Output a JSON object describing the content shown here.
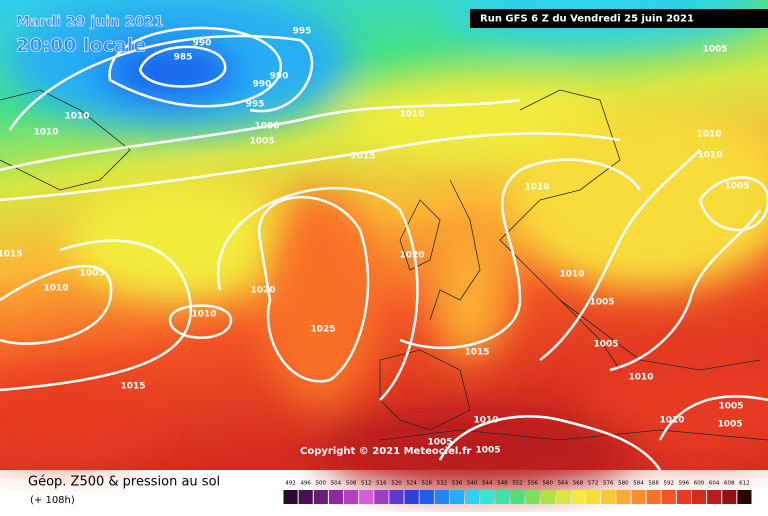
{
  "header": {
    "date": "Mardi 29 juin 2021",
    "time": "20:00 locale",
    "run": "Run GFS 6 Z du Vendredi 25 juin 2021"
  },
  "isobar_labels": [
    990,
    985,
    995,
    990,
    990,
    995,
    1010,
    1010,
    1000,
    1005,
    1010,
    1015,
    1005,
    1010,
    1010,
    1005,
    1010,
    1015,
    1005,
    1010,
    1020,
    1020,
    1010,
    1005,
    1010,
    1025,
    1015,
    1005,
    1010,
    1015,
    1010,
    1005,
    1010,
    1005,
    1005,
    1005
  ],
  "copyright": "Copyright © 2021 Meteociel.fr",
  "legend": {
    "title": "Géop. Z500 & pression au sol",
    "subtitle": "(+ 108h)",
    "values": [
      492,
      496,
      500,
      504,
      508,
      512,
      516,
      520,
      524,
      528,
      532,
      536,
      540,
      544,
      548,
      552,
      556,
      560,
      564,
      568,
      572,
      576,
      580,
      584,
      588,
      592,
      596,
      600,
      604,
      608,
      612
    ],
    "colors": [
      "#2b0a2e",
      "#4b0f54",
      "#6b1d7a",
      "#8e2a9e",
      "#b63fbe",
      "#d35fd2",
      "#9a3fc5",
      "#5a3ad0",
      "#2c3ee0",
      "#1a5ef0",
      "#1e86f5",
      "#25aef5",
      "#2ed1f0",
      "#34e6d6",
      "#3be3a6",
      "#4ee07a",
      "#7ee05a",
      "#aee04a",
      "#d8e640",
      "#f2ec3c",
      "#f8dc3a",
      "#fcc637",
      "#fcaa33",
      "#fb8e2e",
      "#f86f28",
      "#f25224",
      "#e63a22",
      "#d42a20",
      "#b81c1c",
      "#8e1212",
      "#2a0707"
    ]
  }
}
